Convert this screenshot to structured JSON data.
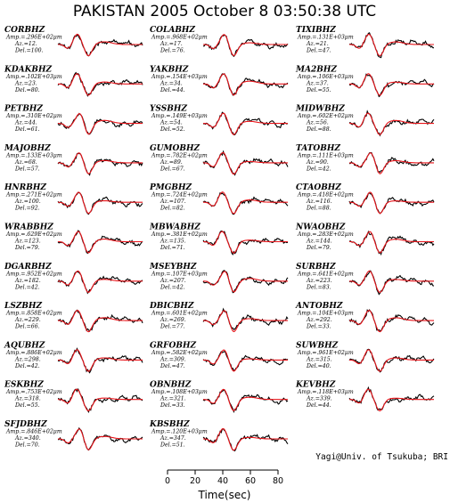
{
  "title": "PAKISTAN 2005 October 8 03:50:38 UTC",
  "credit": "Yagi@Univ. of Tsukuba; BRI",
  "info_prefixes": {
    "amp": "Amp.=",
    "az": "Az.=",
    "del": "Del.="
  },
  "colors": {
    "observed": "#000000",
    "synthetic": "#e8141a",
    "text": "#000000"
  },
  "chart_data": {
    "type": "line",
    "x_axis": {
      "label": "Time(sec)",
      "ticks": [
        0,
        20,
        40,
        60,
        80
      ],
      "range": [
        0,
        80
      ]
    },
    "series_legend": [
      "observed (black)",
      "synthetic (red)"
    ],
    "stations": [
      {
        "name": "CORBHZ",
        "amp": ".296E+02μm",
        "az": "12.",
        "del": "100."
      },
      {
        "name": "KDAKBHZ",
        "amp": ".102E+03μm",
        "az": "23.",
        "del": "80."
      },
      {
        "name": "PETBHZ",
        "amp": ".310E+02μm",
        "az": "44.",
        "del": "61."
      },
      {
        "name": "MAJOBHZ",
        "amp": ".133E+03μm",
        "az": "68.",
        "del": "57."
      },
      {
        "name": "HNRBHZ",
        "amp": ".271E+02μm",
        "az": "100.",
        "del": "92."
      },
      {
        "name": "WRABBHZ",
        "amp": ".629E+02μm",
        "az": "123.",
        "del": "79."
      },
      {
        "name": "DGARBHZ",
        "amp": ".952E+02μm",
        "az": "182.",
        "del": "42."
      },
      {
        "name": "LSZBHZ",
        "amp": ".858E+02μm",
        "az": "229.",
        "del": "66."
      },
      {
        "name": "AQUBHZ",
        "amp": ".886E+02μm",
        "az": "298.",
        "del": "42."
      },
      {
        "name": "ESKBHZ",
        "amp": ".753E+02μm",
        "az": "318.",
        "del": "55."
      },
      {
        "name": "SFJDBHZ",
        "amp": ".846E+02μm",
        "az": "340.",
        "del": "70."
      },
      {
        "name": "COLABHZ",
        "amp": ".968E+02μm",
        "az": "17.",
        "del": "76."
      },
      {
        "name": "YAKBHZ",
        "amp": ".154E+03μm",
        "az": "34.",
        "del": "44."
      },
      {
        "name": "YSSBHZ",
        "amp": ".149E+03μm",
        "az": "54.",
        "del": "52."
      },
      {
        "name": "GUMOBHZ",
        "amp": ".782E+02μm",
        "az": "89.",
        "del": "67."
      },
      {
        "name": "PMGBHZ",
        "amp": ".724E+02μm",
        "az": "107.",
        "del": "82."
      },
      {
        "name": "MBWABHZ",
        "amp": ".381E+02μm",
        "az": "135.",
        "del": "71."
      },
      {
        "name": "MSEYBHZ",
        "amp": ".107E+03μm",
        "az": "207.",
        "del": "42."
      },
      {
        "name": "DBICBHZ",
        "amp": ".601E+02μm",
        "az": "269.",
        "del": "77."
      },
      {
        "name": "GRFOBHZ",
        "amp": ".582E+02μm",
        "az": "309.",
        "del": "47."
      },
      {
        "name": "OBNBHZ",
        "amp": ".108E+03μm",
        "az": "321.",
        "del": "33."
      },
      {
        "name": "KBSBHZ",
        "amp": ".120E+03μm",
        "az": "347.",
        "del": "51."
      },
      {
        "name": "TIXIBHZ",
        "amp": ".131E+03μm",
        "az": "21.",
        "del": "47."
      },
      {
        "name": "MA2BHZ",
        "amp": ".106E+03μm",
        "az": "37.",
        "del": "55."
      },
      {
        "name": "MIDWBHZ",
        "amp": ".602E+02μm",
        "az": "56.",
        "del": "88."
      },
      {
        "name": "TATOBHZ",
        "amp": ".111E+03μm",
        "az": "90.",
        "del": "42."
      },
      {
        "name": "CTAOBHZ",
        "amp": ".418E+02μm",
        "az": "116.",
        "del": "88."
      },
      {
        "name": "NWAOBHZ",
        "amp": ".283E+02μm",
        "az": "144.",
        "del": "79."
      },
      {
        "name": "SURBHZ",
        "amp": ".641E+02μm",
        "az": "223.",
        "del": "83."
      },
      {
        "name": "ANTOBHZ",
        "amp": ".104E+03μm",
        "az": "292.",
        "del": "33."
      },
      {
        "name": "SUWBHZ",
        "amp": ".961E+02μm",
        "az": "315.",
        "del": "40."
      },
      {
        "name": "KEVBHZ",
        "amp": ".118E+03μm",
        "az": "339.",
        "del": "44."
      }
    ]
  }
}
